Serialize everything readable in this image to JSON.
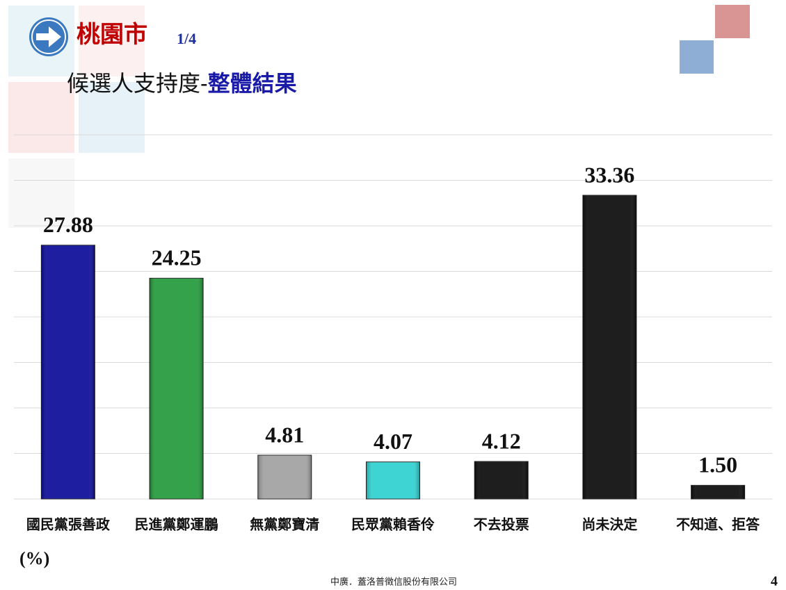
{
  "chart_data": {
    "type": "bar",
    "title": "桃園市",
    "page_part": "1/4",
    "subtitle": "候選人支持度-",
    "subtitle_highlight": "整體結果",
    "unit_label": "(%)",
    "categories": [
      "國民黨張善政",
      "民進黨鄭運鵬",
      "無黨鄭寶清",
      "民眾黨賴香伶",
      "不去投票",
      "尚未決定",
      "不知道、拒答"
    ],
    "values": [
      27.88,
      24.25,
      4.81,
      4.07,
      4.12,
      33.36,
      1.5
    ],
    "value_labels": [
      "27.88",
      "24.25",
      "4.81",
      "4.07",
      "4.12",
      "33.36",
      "1.50"
    ],
    "colors": [
      "#0a0a99",
      "#239a3a",
      "#a0a0a0",
      "#2ed0d0",
      "#0a0a0a",
      "#0a0a0a",
      "#0a0a0a"
    ],
    "ylim": [
      0,
      40
    ],
    "yticks": [
      0,
      5,
      10,
      15,
      20,
      25,
      30,
      35,
      40
    ],
    "grid": true
  },
  "footer": {
    "source": "中廣．蓋洛普徵信股份有限公司",
    "page_number": "4"
  }
}
